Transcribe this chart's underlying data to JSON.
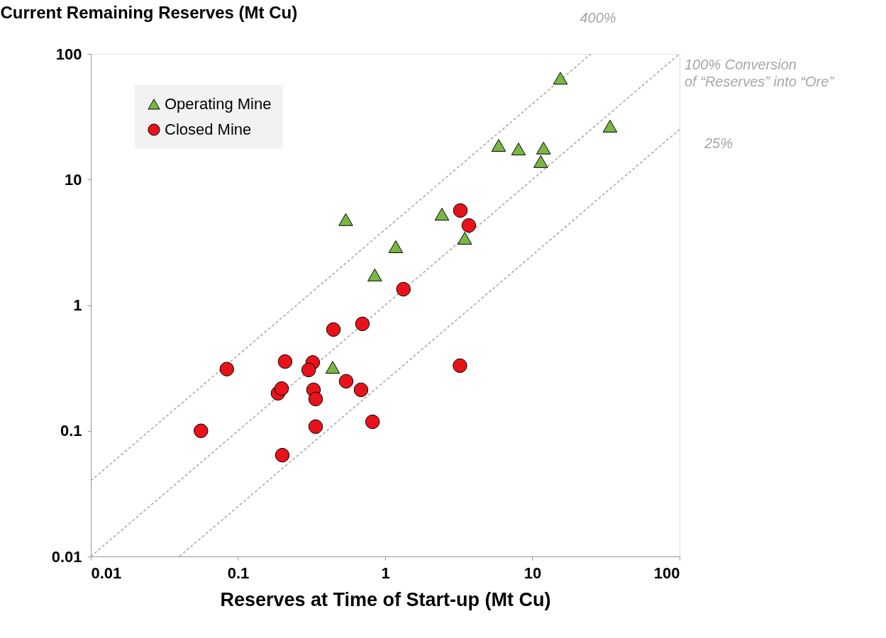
{
  "chart_data": {
    "type": "scatter",
    "ylabel": "Current Remaining Reserves (Mt Cu)",
    "xlabel": "Reserves at Time of Start-up (Mt Cu)",
    "log": "xy",
    "xlim": [
      0.01,
      100
    ],
    "ylim": [
      0.01,
      100
    ],
    "xticks": [
      0.01,
      0.1,
      1,
      10,
      100
    ],
    "yticks": [
      0.01,
      0.1,
      1,
      10,
      100
    ],
    "grid": false,
    "legend": "top left",
    "series": [
      {
        "name": "Operating Mine",
        "marker": "triangle",
        "color": "#77b843",
        "x": [
          15.5,
          33.7,
          5.9,
          8.05,
          11.9,
          11.4,
          0.54,
          2.43,
          1.18,
          3.47,
          0.85,
          0.44
        ],
        "values": [
          64,
          26.6,
          18.7,
          17.5,
          17.8,
          13.9,
          4.8,
          5.3,
          2.92,
          3.41,
          1.74,
          0.32
        ]
      },
      {
        "name": "Closed Mine",
        "marker": "circle",
        "color": "#e8131a",
        "x": [
          3.24,
          3.7,
          1.33,
          0.7,
          0.445,
          0.084,
          0.209,
          0.322,
          0.302,
          3.22,
          0.187,
          0.198,
          0.326,
          0.543,
          0.685,
          0.337,
          0.056,
          0.337,
          0.82,
          0.2
        ],
        "values": [
          5.67,
          4.31,
          1.34,
          0.71,
          0.64,
          0.31,
          0.356,
          0.35,
          0.305,
          0.33,
          0.199,
          0.217,
          0.212,
          0.248,
          0.212,
          0.179,
          0.1,
          0.108,
          0.118,
          0.064
        ]
      },
      {
        "name": "400%",
        "type": "line",
        "marker": "none",
        "line_style": "dashed",
        "color": "#a6a6a6",
        "x": [
          0.01,
          25
        ],
        "values": [
          0.04,
          100
        ]
      },
      {
        "name": "100% Conversion\nof  “Reserves” into “Ore”",
        "type": "line",
        "marker": "none",
        "line_style": "dashed",
        "color": "#a6a6a6",
        "x": [
          0.01,
          100
        ],
        "values": [
          0.01,
          100
        ]
      },
      {
        "name": "25%",
        "type": "line",
        "marker": "none",
        "line_style": "dashed",
        "color": "#a6a6a6",
        "x": [
          0.04,
          100
        ],
        "values": [
          0.01,
          25
        ]
      }
    ]
  }
}
